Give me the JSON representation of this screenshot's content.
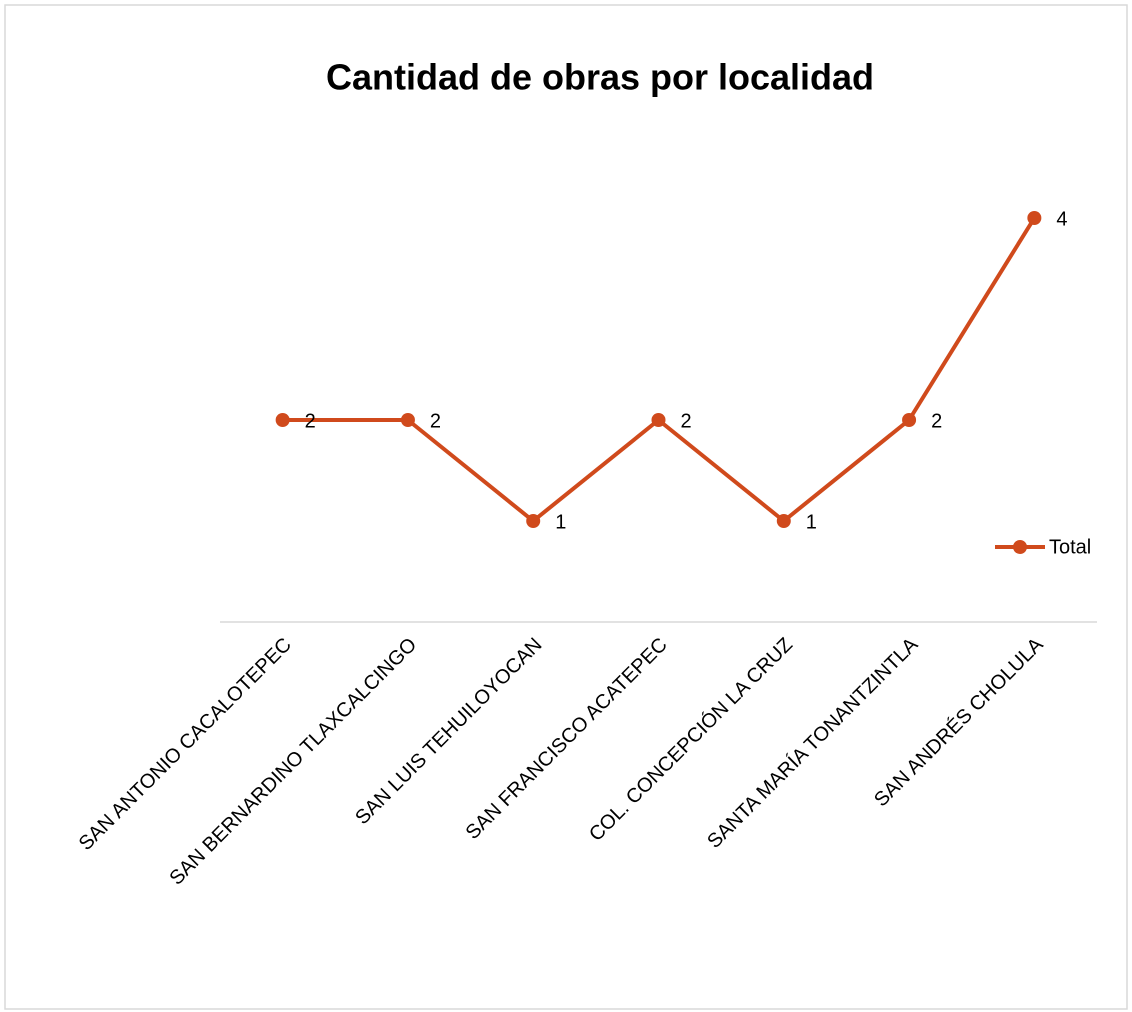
{
  "chart_data": {
    "type": "line",
    "title": "Cantidad de obras por localidad",
    "categories": [
      "SAN ANTONIO CACALOTEPEC",
      "SAN BERNARDINO TLAXCALCINGO",
      "SAN LUIS TEHUILOYOCAN",
      "SAN FRANCISCO ACATEPEC",
      "COL. CONCEPCIÓN LA CRUZ",
      "SANTA MARÍA TONANTZINTLA",
      "SAN ANDRÉS CHOLULA"
    ],
    "series": [
      {
        "name": "Total",
        "color": "#d04a1c",
        "values": [
          2,
          2,
          1,
          2,
          1,
          2,
          4
        ]
      }
    ],
    "ylim": [
      0,
      5
    ],
    "legend": "right",
    "data_labels": true
  }
}
